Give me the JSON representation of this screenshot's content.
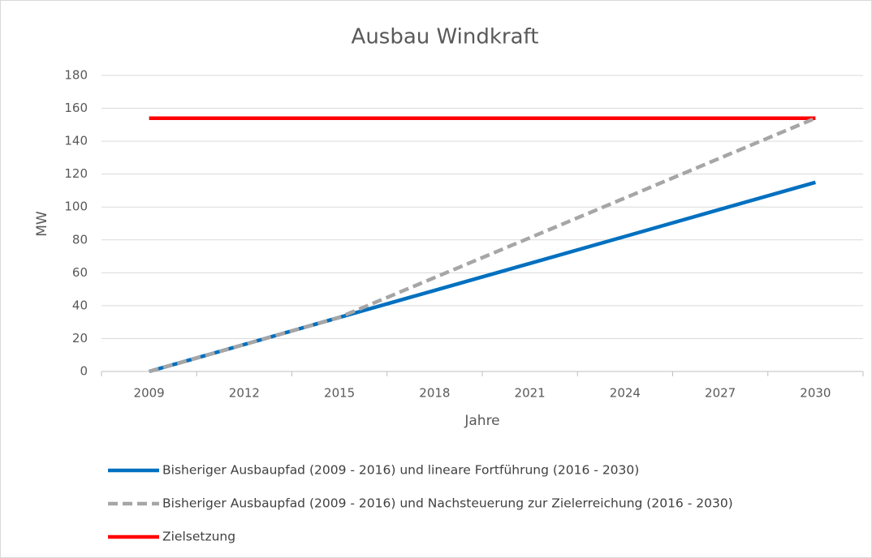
{
  "chart_data": {
    "type": "line",
    "title": "Ausbau Windkraft",
    "x_label": "Jahre",
    "y_label": "MW",
    "categories": [
      "2009",
      "2012",
      "2015",
      "2018",
      "2021",
      "2024",
      "2027",
      "2030"
    ],
    "series": [
      {
        "name": "Bisheriger Ausbaupfad (2009 - 2016) und lineare Fortführung (2016 - 2030)",
        "color": "#0070c0",
        "dashed": false,
        "values": [
          0,
          16.4,
          32.9,
          49.3,
          65.7,
          82.1,
          98.6,
          115
        ]
      },
      {
        "name": "Bisheriger Ausbaupfad (2009 - 2016) und Nachsteuerung zur Zielerreichung (2016 - 2030)",
        "color": "#a6a6a6",
        "dashed": true,
        "values": [
          0,
          16.4,
          32.9,
          57.1,
          81.3,
          105.5,
          129.8,
          154
        ]
      },
      {
        "name": "Zielsetzung",
        "color": "#ff0000",
        "dashed": false,
        "values": [
          154,
          154,
          154,
          154,
          154,
          154,
          154,
          154
        ]
      }
    ],
    "ylim": [
      0,
      180
    ],
    "yticks": [
      0,
      20,
      40,
      60,
      80,
      100,
      120,
      140,
      160,
      180
    ],
    "grid": true,
    "legend": "bottom"
  }
}
